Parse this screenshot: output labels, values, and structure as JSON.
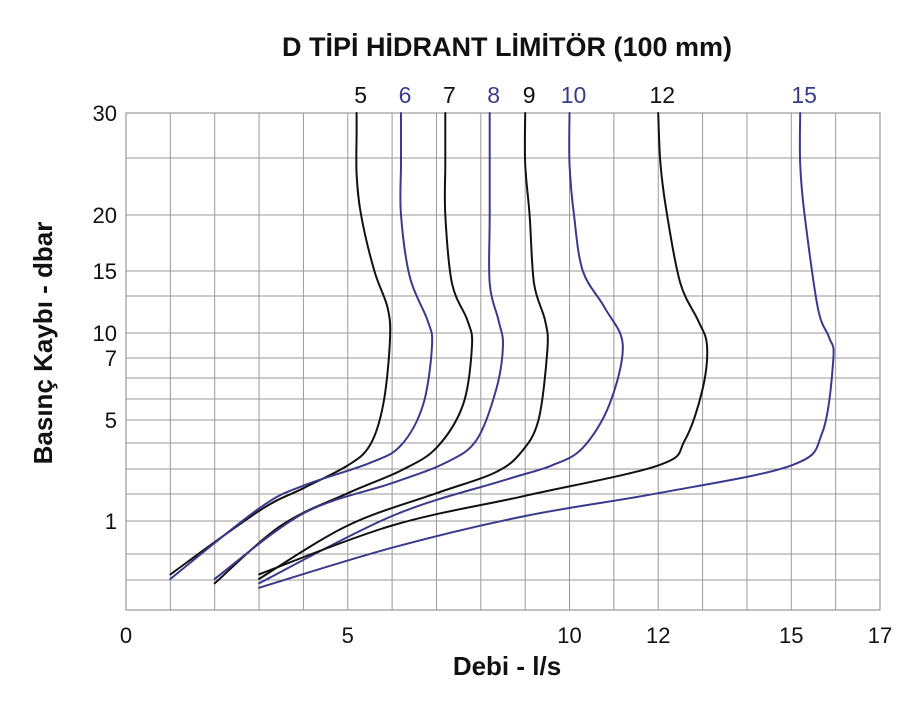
{
  "chart_data": {
    "type": "line",
    "title": "D TİPİ HİDRANT LİMİTÖR (100 mm)",
    "xlabel": "Debi - l/s",
    "ylabel": "Basınç Kaybı - dbar",
    "xlim": [
      0,
      17
    ],
    "x_ticks": [
      {
        "value": 0,
        "label": "0"
      },
      {
        "value": 5,
        "label": "5"
      },
      {
        "value": 10,
        "label": "10"
      },
      {
        "value": 12,
        "label": "12"
      },
      {
        "value": 15,
        "label": "15"
      },
      {
        "value": 17,
        "label": "17"
      }
    ],
    "y_ticks": [
      {
        "value": 1,
        "label": "1"
      },
      {
        "value": 5,
        "label": "5"
      },
      {
        "value": 7,
        "label": "7"
      },
      {
        "value": 10,
        "label": "10"
      },
      {
        "value": 15,
        "label": "15"
      },
      {
        "value": 20,
        "label": "20"
      },
      {
        "value": 30,
        "label": "30"
      }
    ],
    "grid": true,
    "colors": {
      "black": "#111111",
      "blue": "#3a3a8c"
    },
    "series": [
      {
        "name": "5",
        "color": "black",
        "x": [
          1.0,
          3.0,
          4.0,
          5.0,
          5.5,
          5.8,
          5.95,
          5.9,
          5.6,
          5.3,
          5.2,
          5.2,
          5.2
        ],
        "y": [
          -0.2,
          1.4,
          2.3,
          3.2,
          4.0,
          5.5,
          9.0,
          12.0,
          15.0,
          20.0,
          24.0,
          28.0,
          30.0
        ]
      },
      {
        "name": "6",
        "color": "blue",
        "x": [
          1.0,
          3.0,
          4.0,
          5.5,
          6.2,
          6.7,
          6.9,
          6.8,
          6.4,
          6.2,
          6.2,
          6.2
        ],
        "y": [
          -0.3,
          1.5,
          2.4,
          3.3,
          4.0,
          5.5,
          8.5,
          11.0,
          14.5,
          20.0,
          25.0,
          30.0
        ]
      },
      {
        "name": "7",
        "color": "black",
        "x": [
          2.0,
          3.5,
          5.0,
          6.2,
          7.0,
          7.6,
          7.8,
          7.7,
          7.35,
          7.2,
          7.2,
          7.2
        ],
        "y": [
          -0.4,
          0.9,
          2.1,
          3.0,
          3.9,
          5.5,
          8.5,
          11.0,
          14.0,
          20.0,
          25.0,
          30.0
        ]
      },
      {
        "name": "8",
        "color": "blue",
        "x": [
          2.0,
          4.0,
          6.0,
          7.2,
          7.9,
          8.35,
          8.5,
          8.4,
          8.2,
          8.2,
          8.2
        ],
        "y": [
          -0.3,
          1.3,
          2.5,
          3.3,
          4.2,
          6.0,
          8.5,
          11.0,
          14.0,
          20.0,
          30.0
        ]
      },
      {
        "name": "9",
        "color": "black",
        "x": [
          3.0,
          5.0,
          7.0,
          8.3,
          8.9,
          9.3,
          9.5,
          9.45,
          9.2,
          9.1,
          9.0,
          9.0
        ],
        "y": [
          -0.3,
          0.9,
          2.1,
          2.9,
          3.7,
          5.0,
          8.0,
          11.0,
          14.0,
          20.0,
          25.0,
          30.0
        ]
      },
      {
        "name": "10",
        "color": "blue",
        "x": [
          3.0,
          6.0,
          8.5,
          9.6,
          10.3,
          10.9,
          11.2,
          10.8,
          10.3,
          10.1,
          10.0,
          10.0
        ],
        "y": [
          -0.4,
          1.2,
          2.6,
          3.2,
          3.9,
          5.5,
          8.5,
          12.0,
          15.0,
          20.0,
          25.0,
          30.0
        ]
      },
      {
        "name": "12",
        "color": "black",
        "x": [
          3.0,
          6.0,
          9.0,
          12.0,
          12.6,
          13.0,
          13.1,
          12.9,
          12.5,
          12.2,
          12.05,
          12.0
        ],
        "y": [
          -0.2,
          0.9,
          2.0,
          3.2,
          4.2,
          6.0,
          8.5,
          11.0,
          14.0,
          20.0,
          25.0,
          30.0
        ]
      },
      {
        "name": "15",
        "color": "blue",
        "x": [
          3.0,
          6.0,
          9.0,
          12.0,
          15.0,
          15.7,
          15.95,
          15.85,
          15.6,
          15.3,
          15.2,
          15.2
        ],
        "y": [
          -0.5,
          0.4,
          1.2,
          2.1,
          3.2,
          4.5,
          7.0,
          9.5,
          12.0,
          20.0,
          25.0,
          30.0
        ]
      }
    ]
  }
}
